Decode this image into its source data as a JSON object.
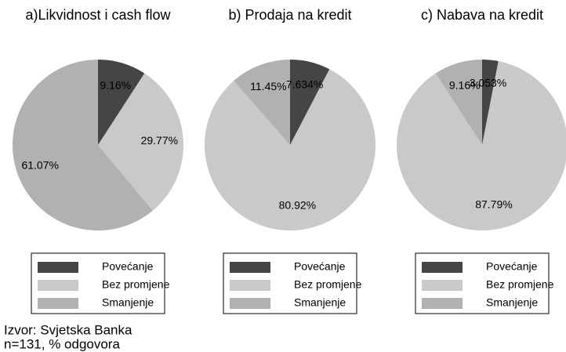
{
  "chart_data": [
    {
      "type": "pie",
      "title": "a)Likvidnost i cash flow",
      "categories": [
        "Povećanje",
        "Bez promjene",
        "Smanjenje"
      ],
      "values": [
        9.16,
        29.77,
        61.07
      ],
      "value_labels": [
        "9.16%",
        "29.77%",
        "61.07%"
      ],
      "colors": [
        "#454545",
        "#c9c9c9",
        "#b1b1b1"
      ]
    },
    {
      "type": "pie",
      "title": "b) Prodaja na kredit",
      "categories": [
        "Povećanje",
        "Bez promjene",
        "Smanjenje"
      ],
      "values": [
        7.634,
        80.92,
        11.45
      ],
      "value_labels": [
        "7.634%",
        "80.92%",
        "11.45%"
      ],
      "colors": [
        "#454545",
        "#c9c9c9",
        "#b1b1b1"
      ]
    },
    {
      "type": "pie",
      "title": "c) Nabava na kredit",
      "categories": [
        "Povećanje",
        "Bez promjene",
        "Smanjenje"
      ],
      "values": [
        3.053,
        87.79,
        9.16
      ],
      "value_labels": [
        "3.053%",
        "87.79%",
        "9.16%"
      ],
      "colors": [
        "#454545",
        "#c9c9c9",
        "#b1b1b1"
      ]
    }
  ],
  "source": "Izvor: Svjetska Banka",
  "note": "n=131, % odgovora"
}
